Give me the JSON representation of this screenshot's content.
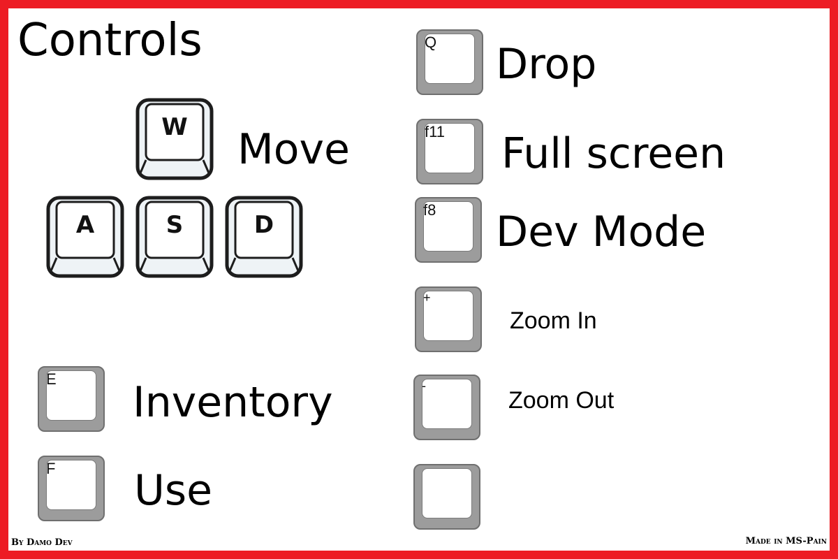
{
  "title": "Controls",
  "move": {
    "label": "Move",
    "keys": [
      "W",
      "A",
      "S",
      "D"
    ]
  },
  "left_bindings": [
    {
      "key": "E",
      "action": "Inventory"
    },
    {
      "key": "F",
      "action": "Use"
    }
  ],
  "right_bindings": [
    {
      "key": "Q",
      "action": "Drop"
    },
    {
      "key": "f11",
      "action": "Full screen"
    },
    {
      "key": "f8",
      "action": "Dev Mode"
    },
    {
      "key": "+",
      "action": "Zoom In"
    },
    {
      "key": "-",
      "action": "Zoom Out"
    },
    {
      "key": "",
      "action": ""
    }
  ],
  "footer": {
    "author": "By Damo Dev",
    "made_with": "Made in MS-Pain"
  },
  "colors": {
    "border": "#ed1c24",
    "key_grey": "#9c9c9c",
    "key_face": "#ffffff"
  }
}
